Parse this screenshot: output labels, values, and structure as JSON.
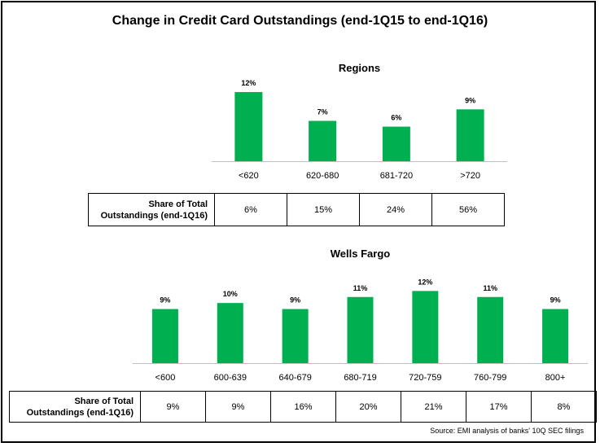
{
  "title": "Change in Credit Card Outstandings (end-1Q15 to end-1Q16)",
  "source": "Source:  EMI analysis of banks' 10Q SEC filings",
  "bar_color": "#00b050",
  "chart_data": [
    {
      "type": "bar",
      "title": "Regions",
      "categories": [
        "<620",
        "620-680",
        "681-720",
        ">720"
      ],
      "values": [
        12,
        7,
        6,
        9
      ],
      "value_labels": [
        "12%",
        "7%",
        "6%",
        "9%"
      ],
      "ylim": [
        0,
        13
      ],
      "share_header_line1": "Share of Total",
      "share_header_line2": "Outstandings (end-1Q16)",
      "share_values": [
        "6%",
        "15%",
        "24%",
        "56%"
      ]
    },
    {
      "type": "bar",
      "title": "Wells Fargo",
      "categories": [
        "<600",
        "600-639",
        "640-679",
        "680-719",
        "720-759",
        "760-799",
        "800+"
      ],
      "values": [
        9,
        10,
        9,
        11,
        12,
        11,
        9
      ],
      "value_labels": [
        "9%",
        "10%",
        "9%",
        "11%",
        "12%",
        "11%",
        "9%"
      ],
      "ylim": [
        0,
        13
      ],
      "share_header_line1": "Share of Total",
      "share_header_line2": "Outstandings (end-1Q16)",
      "share_values": [
        "9%",
        "9%",
        "16%",
        "20%",
        "21%",
        "17%",
        "8%"
      ]
    }
  ]
}
